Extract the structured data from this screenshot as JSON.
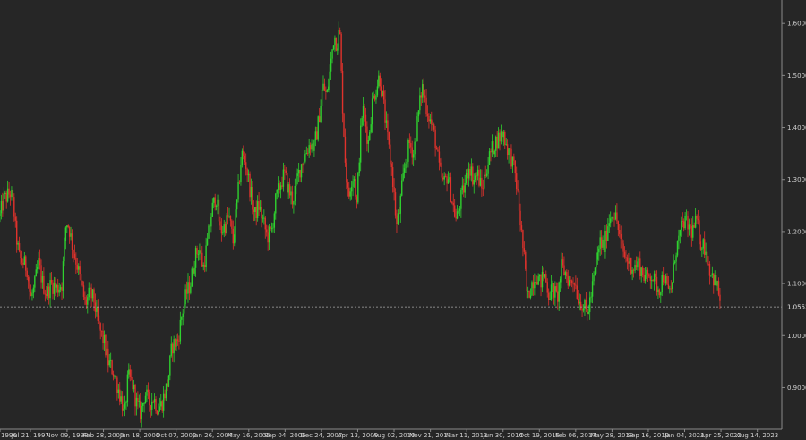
{
  "colors": {
    "background": "#262626",
    "up": "#2fd12f",
    "down": "#e0322c",
    "axis_text": "#cfcfcf",
    "axis_line": "#8a8a8a",
    "current_line": "#a8a8a8"
  },
  "current_price": {
    "label": "1.0553",
    "value": 1.0553
  },
  "chart_data": {
    "type": "candlestick",
    "title": "",
    "xlabel": "",
    "ylabel": "",
    "ylim": [
      0.82,
      1.645
    ],
    "xlim": [
      0,
      1.1
    ],
    "y_ticks": [
      {
        "value": 0.9,
        "label": "0.9000"
      },
      {
        "value": 1.0,
        "label": "1.0000"
      },
      {
        "value": 1.1,
        "label": "1.1000"
      },
      {
        "value": 1.2,
        "label": "1.2000"
      },
      {
        "value": 1.3,
        "label": "1.3000"
      },
      {
        "value": 1.4,
        "label": "1.4000"
      },
      {
        "value": 1.5,
        "label": "1.5000"
      },
      {
        "value": 1.6,
        "label": "1.6000"
      }
    ],
    "x_ticks": [
      {
        "value": 0.0,
        "label": "1996"
      },
      {
        "value": 0.0428,
        "label": "Jul 21, 1997"
      },
      {
        "value": 0.0944,
        "label": "Nov 09, 1998"
      },
      {
        "value": 0.1456,
        "label": "Feb 28, 2000"
      },
      {
        "value": 0.1967,
        "label": "Jun 18, 2001"
      },
      {
        "value": 0.2478,
        "label": "Oct 07, 2002"
      },
      {
        "value": 0.2989,
        "label": "Jan 26, 2004"
      },
      {
        "value": 0.35,
        "label": "May 16, 2005"
      },
      {
        "value": 0.4011,
        "label": "Sep 04, 2006"
      },
      {
        "value": 0.4522,
        "label": "Dec 24, 2007"
      },
      {
        "value": 0.5033,
        "label": "Apr 13, 2009"
      },
      {
        "value": 0.5544,
        "label": "Aug 02, 2010"
      },
      {
        "value": 0.6056,
        "label": "Nov 21, 2011"
      },
      {
        "value": 0.6567,
        "label": "Mar 11, 2013"
      },
      {
        "value": 0.7078,
        "label": "Jun 30, 2014"
      },
      {
        "value": 0.7589,
        "label": "Oct 19, 2015"
      },
      {
        "value": 0.81,
        "label": "Feb 06, 2017"
      },
      {
        "value": 0.8611,
        "label": "May 28, 2018"
      },
      {
        "value": 0.9122,
        "label": "Sep 16, 2019"
      },
      {
        "value": 0.9633,
        "label": "Jan 04, 2021"
      },
      {
        "value": 1.0144,
        "label": "Apr 25, 2022"
      },
      {
        "value": 1.0656,
        "label": "Aug 14, 2023"
      }
    ],
    "price_path": [
      [
        0.0,
        1.23
      ],
      [
        0.005,
        1.26
      ],
      [
        0.011,
        1.27
      ],
      [
        0.015,
        1.275
      ],
      [
        0.019,
        1.25
      ],
      [
        0.022,
        1.2
      ],
      [
        0.027,
        1.15
      ],
      [
        0.033,
        1.14
      ],
      [
        0.038,
        1.13
      ],
      [
        0.043,
        1.07
      ],
      [
        0.048,
        1.09
      ],
      [
        0.054,
        1.14
      ],
      [
        0.06,
        1.1
      ],
      [
        0.066,
        1.08
      ],
      [
        0.072,
        1.1
      ],
      [
        0.08,
        1.09
      ],
      [
        0.087,
        1.1
      ],
      [
        0.093,
        1.22
      ],
      [
        0.097,
        1.21
      ],
      [
        0.102,
        1.17
      ],
      [
        0.108,
        1.14
      ],
      [
        0.114,
        1.1
      ],
      [
        0.12,
        1.06
      ],
      [
        0.126,
        1.08
      ],
      [
        0.132,
        1.07
      ],
      [
        0.138,
        1.02
      ],
      [
        0.146,
        0.99
      ],
      [
        0.152,
        0.95
      ],
      [
        0.16,
        0.93
      ],
      [
        0.166,
        0.9
      ],
      [
        0.172,
        0.87
      ],
      [
        0.175,
        0.84
      ],
      [
        0.18,
        0.92
      ],
      [
        0.186,
        0.91
      ],
      [
        0.192,
        0.87
      ],
      [
        0.198,
        0.85
      ],
      [
        0.204,
        0.89
      ],
      [
        0.21,
        0.87
      ],
      [
        0.216,
        0.88
      ],
      [
        0.222,
        0.86
      ],
      [
        0.228,
        0.87
      ],
      [
        0.236,
        0.91
      ],
      [
        0.242,
        0.98
      ],
      [
        0.25,
        0.99
      ],
      [
        0.256,
        1.04
      ],
      [
        0.262,
        1.08
      ],
      [
        0.268,
        1.1
      ],
      [
        0.274,
        1.15
      ],
      [
        0.28,
        1.17
      ],
      [
        0.286,
        1.13
      ],
      [
        0.292,
        1.18
      ],
      [
        0.298,
        1.24
      ],
      [
        0.304,
        1.27
      ],
      [
        0.31,
        1.2
      ],
      [
        0.316,
        1.21
      ],
      [
        0.322,
        1.23
      ],
      [
        0.328,
        1.18
      ],
      [
        0.334,
        1.26
      ],
      [
        0.34,
        1.35
      ],
      [
        0.346,
        1.33
      ],
      [
        0.352,
        1.28
      ],
      [
        0.358,
        1.23
      ],
      [
        0.364,
        1.25
      ],
      [
        0.37,
        1.22
      ],
      [
        0.376,
        1.19
      ],
      [
        0.382,
        1.2
      ],
      [
        0.388,
        1.26
      ],
      [
        0.394,
        1.29
      ],
      [
        0.4,
        1.31
      ],
      [
        0.406,
        1.28
      ],
      [
        0.412,
        1.26
      ],
      [
        0.418,
        1.3
      ],
      [
        0.424,
        1.33
      ],
      [
        0.43,
        1.35
      ],
      [
        0.436,
        1.37
      ],
      [
        0.442,
        1.36
      ],
      [
        0.448,
        1.41
      ],
      [
        0.454,
        1.48
      ],
      [
        0.46,
        1.46
      ],
      [
        0.466,
        1.53
      ],
      [
        0.47,
        1.58
      ],
      [
        0.474,
        1.56
      ],
      [
        0.478,
        1.59
      ],
      [
        0.481,
        1.47
      ],
      [
        0.486,
        1.33
      ],
      [
        0.49,
        1.26
      ],
      [
        0.494,
        1.3
      ],
      [
        0.498,
        1.31
      ],
      [
        0.502,
        1.25
      ],
      [
        0.506,
        1.36
      ],
      [
        0.51,
        1.44
      ],
      [
        0.514,
        1.41
      ],
      [
        0.518,
        1.37
      ],
      [
        0.524,
        1.45
      ],
      [
        0.53,
        1.48
      ],
      [
        0.534,
        1.5
      ],
      [
        0.54,
        1.44
      ],
      [
        0.546,
        1.37
      ],
      [
        0.552,
        1.31
      ],
      [
        0.558,
        1.21
      ],
      [
        0.562,
        1.24
      ],
      [
        0.566,
        1.29
      ],
      [
        0.57,
        1.33
      ],
      [
        0.576,
        1.37
      ],
      [
        0.582,
        1.35
      ],
      [
        0.588,
        1.42
      ],
      [
        0.594,
        1.48
      ],
      [
        0.6,
        1.44
      ],
      [
        0.606,
        1.41
      ],
      [
        0.612,
        1.38
      ],
      [
        0.618,
        1.32
      ],
      [
        0.624,
        1.29
      ],
      [
        0.63,
        1.31
      ],
      [
        0.636,
        1.26
      ],
      [
        0.642,
        1.22
      ],
      [
        0.648,
        1.26
      ],
      [
        0.654,
        1.29
      ],
      [
        0.66,
        1.33
      ],
      [
        0.666,
        1.3
      ],
      [
        0.672,
        1.31
      ],
      [
        0.678,
        1.28
      ],
      [
        0.684,
        1.32
      ],
      [
        0.69,
        1.35
      ],
      [
        0.696,
        1.37
      ],
      [
        0.702,
        1.38
      ],
      [
        0.708,
        1.39
      ],
      [
        0.714,
        1.36
      ],
      [
        0.72,
        1.34
      ],
      [
        0.726,
        1.3
      ],
      [
        0.732,
        1.22
      ],
      [
        0.738,
        1.14
      ],
      [
        0.742,
        1.07
      ],
      [
        0.748,
        1.1
      ],
      [
        0.754,
        1.12
      ],
      [
        0.76,
        1.1
      ],
      [
        0.766,
        1.12
      ],
      [
        0.772,
        1.08
      ],
      [
        0.778,
        1.09
      ],
      [
        0.784,
        1.07
      ],
      [
        0.79,
        1.13
      ],
      [
        0.796,
        1.12
      ],
      [
        0.802,
        1.1
      ],
      [
        0.808,
        1.11
      ],
      [
        0.814,
        1.07
      ],
      [
        0.82,
        1.06
      ],
      [
        0.826,
        1.04
      ],
      [
        0.832,
        1.08
      ],
      [
        0.838,
        1.13
      ],
      [
        0.844,
        1.18
      ],
      [
        0.85,
        1.17
      ],
      [
        0.856,
        1.22
      ],
      [
        0.862,
        1.24
      ],
      [
        0.868,
        1.22
      ],
      [
        0.874,
        1.17
      ],
      [
        0.88,
        1.15
      ],
      [
        0.886,
        1.14
      ],
      [
        0.892,
        1.13
      ],
      [
        0.898,
        1.14
      ],
      [
        0.904,
        1.12
      ],
      [
        0.91,
        1.11
      ],
      [
        0.916,
        1.12
      ],
      [
        0.922,
        1.1
      ],
      [
        0.928,
        1.09
      ],
      [
        0.934,
        1.12
      ],
      [
        0.94,
        1.08
      ],
      [
        0.946,
        1.1
      ],
      [
        0.95,
        1.16
      ],
      [
        0.956,
        1.19
      ],
      [
        0.962,
        1.22
      ],
      [
        0.968,
        1.21
      ],
      [
        0.974,
        1.2
      ],
      [
        0.98,
        1.22
      ],
      [
        0.986,
        1.18
      ],
      [
        0.992,
        1.17
      ],
      [
        0.998,
        1.13
      ],
      [
        1.004,
        1.11
      ],
      [
        1.01,
        1.09
      ],
      [
        1.013,
        1.07
      ]
    ]
  }
}
